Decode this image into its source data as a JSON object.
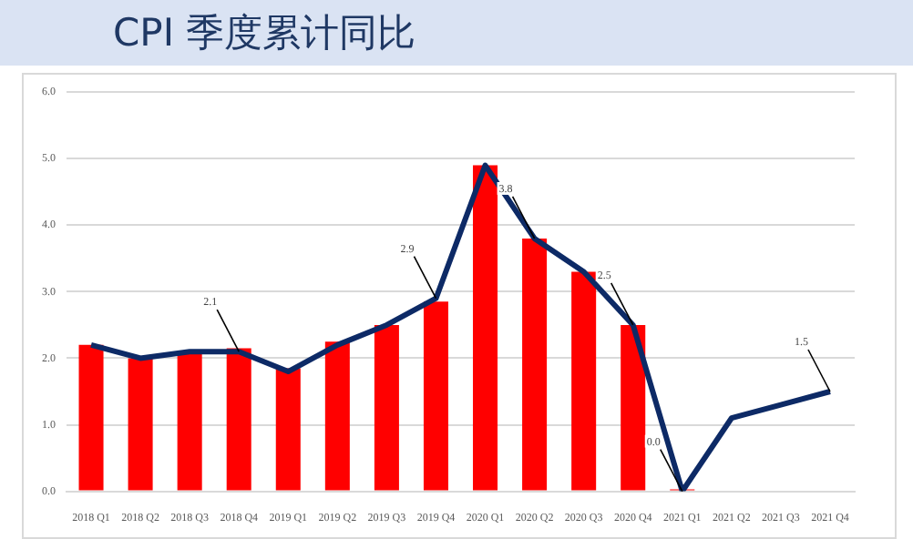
{
  "chart_data": {
    "type": "bar",
    "title": "CPI 季度累计同比",
    "categories": [
      "2018 Q1",
      "2018 Q2",
      "2018 Q3",
      "2018 Q4",
      "2019 Q1",
      "2019 Q2",
      "2019 Q3",
      "2019 Q4",
      "2020 Q1",
      "2020 Q2",
      "2020 Q3",
      "2020 Q4",
      "2021 Q1",
      "2021 Q2",
      "2021 Q3",
      "2021 Q4"
    ],
    "series": [
      {
        "color": "#ff0000",
        "values": [
          2.2,
          2.0,
          2.1,
          2.15,
          1.85,
          2.25,
          2.5,
          2.85,
          4.9,
          3.8,
          3.3,
          2.5,
          0.03,
          null,
          null,
          null
        ]
      },
      {
        "type": "line",
        "color": "#0d2a66",
        "values": [
          2.2,
          2.0,
          2.1,
          2.1,
          1.8,
          2.2,
          2.5,
          2.9,
          4.9,
          3.8,
          3.3,
          2.5,
          0.0,
          1.1,
          1.3,
          1.5
        ],
        "value_labels": [
          null,
          null,
          null,
          "2.1",
          null,
          null,
          null,
          "2.9",
          null,
          "3.8",
          null,
          "2.5",
          "0.0",
          null,
          null,
          "1.5"
        ]
      }
    ],
    "ylim": [
      0,
      6
    ],
    "yticks": [
      {
        "value": 0,
        "label": "0.0"
      },
      {
        "value": 1,
        "label": "1.0"
      },
      {
        "value": 2,
        "label": "2.0"
      },
      {
        "value": 3,
        "label": "3.0"
      },
      {
        "value": 4,
        "label": "4.0"
      },
      {
        "value": 5,
        "label": "5.0"
      },
      {
        "value": 6,
        "label": "6.0"
      }
    ],
    "grid": "y",
    "legend": false,
    "marker": "none",
    "line_style": "solid"
  }
}
